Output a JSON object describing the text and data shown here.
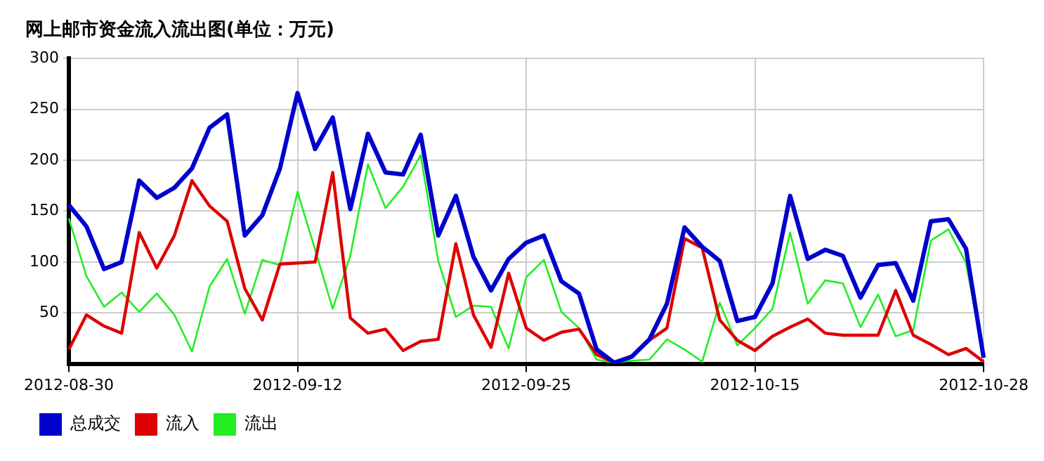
{
  "chart_data": {
    "type": "line",
    "title": "网上邮市资金流入流出图(单位：万元)",
    "categories": [
      "2012-08-30",
      null,
      null,
      null,
      null,
      null,
      null,
      null,
      null,
      null,
      null,
      null,
      null,
      "2012-09-12",
      null,
      null,
      null,
      null,
      null,
      null,
      null,
      null,
      null,
      null,
      null,
      null,
      "2012-09-25",
      null,
      null,
      null,
      null,
      null,
      null,
      null,
      null,
      null,
      null,
      null,
      null,
      "2012-10-15",
      null,
      null,
      null,
      null,
      null,
      null,
      null,
      null,
      null,
      null,
      null,
      null,
      "2012-10-28"
    ],
    "series": [
      {
        "name": "总成交",
        "color": "#0000cc",
        "values": [
          156,
          135,
          93,
          100,
          180,
          163,
          173,
          192,
          232,
          245,
          126,
          146,
          192,
          266,
          211,
          242,
          152,
          226,
          188,
          186,
          225,
          126,
          165,
          105,
          72,
          103,
          119,
          126,
          81,
          69,
          14,
          1,
          7,
          24,
          59,
          134,
          115,
          101,
          42,
          46,
          79,
          165,
          103,
          112,
          106,
          65,
          97,
          99,
          62,
          140,
          142,
          113,
          6
        ]
      },
      {
        "name": "流入",
        "color": "#dd0000",
        "values": [
          14,
          48,
          37,
          30,
          129,
          94,
          126,
          180,
          155,
          140,
          74,
          43,
          98,
          99,
          100,
          188,
          45,
          30,
          34,
          13,
          22,
          24,
          118,
          48,
          16,
          89,
          35,
          23,
          31,
          34,
          9,
          1,
          7,
          23,
          35,
          123,
          114,
          43,
          23,
          13,
          27,
          36,
          44,
          30,
          28,
          28,
          28,
          72,
          28,
          19,
          9,
          15,
          2
        ]
      },
      {
        "name": "流出",
        "color": "#22ee22",
        "values": [
          143,
          86,
          56,
          70,
          51,
          69,
          48,
          12,
          76,
          103,
          49,
          102,
          97,
          169,
          112,
          54,
          106,
          196,
          153,
          174,
          205,
          101,
          46,
          57,
          56,
          15,
          85,
          102,
          51,
          35,
          4,
          1,
          3,
          4,
          24,
          14,
          2,
          60,
          18,
          35,
          54,
          129,
          59,
          82,
          79,
          36,
          68,
          27,
          33,
          121,
          132,
          99,
          6
        ]
      }
    ],
    "ylim": [
      0,
      300
    ],
    "yticks": [
      50,
      100,
      150,
      200,
      250,
      300
    ],
    "grid": true,
    "legend": "bottom left",
    "marker": "none",
    "line_style": "solid"
  }
}
